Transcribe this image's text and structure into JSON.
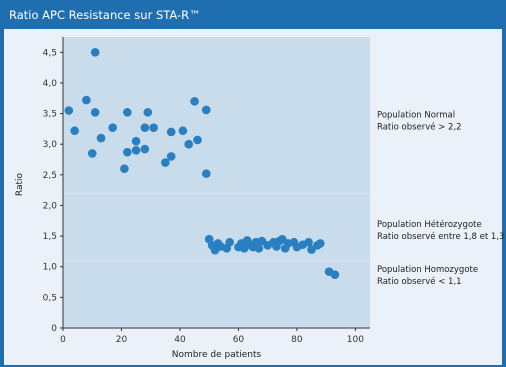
{
  "header": {
    "title": "Ratio APC Resistance sur STA-R™"
  },
  "colors": {
    "frame": "#1f6fb0",
    "plot_bg": "#c9dcec",
    "marker": "#2a7fc0",
    "panel": "#eaf1f8"
  },
  "chart_data": {
    "type": "scatter",
    "title": "Ratio APC Resistance sur STA-R™",
    "xlabel": "Nombre de patients",
    "ylabel": "Ratio",
    "xlim": [
      0,
      105
    ],
    "ylim": [
      0,
      4.75
    ],
    "x_ticks": [
      0,
      20,
      40,
      60,
      80,
      100
    ],
    "x_tick_labels": [
      "0",
      "20",
      "40",
      "60",
      "80",
      "100"
    ],
    "y_ticks": [
      0,
      0.5,
      1.0,
      1.5,
      2.0,
      2.5,
      3.0,
      3.5,
      4.0,
      4.5
    ],
    "y_tick_labels": [
      "0",
      "0,5",
      "1,0",
      "1,5",
      "2,0",
      "2,5",
      "3,0",
      "3,5",
      "4,0",
      "4,5"
    ],
    "grid": false,
    "points": [
      [
        2,
        3.55
      ],
      [
        4,
        3.22
      ],
      [
        8,
        3.72
      ],
      [
        10,
        2.85
      ],
      [
        11,
        4.5
      ],
      [
        11,
        3.52
      ],
      [
        13,
        3.1
      ],
      [
        17,
        3.27
      ],
      [
        21,
        2.6
      ],
      [
        22,
        3.52
      ],
      [
        22,
        2.87
      ],
      [
        25,
        2.9
      ],
      [
        25,
        3.05
      ],
      [
        28,
        2.92
      ],
      [
        28,
        3.27
      ],
      [
        29,
        3.52
      ],
      [
        31,
        3.27
      ],
      [
        35,
        2.7
      ],
      [
        37,
        2.8
      ],
      [
        37,
        3.2
      ],
      [
        41,
        3.22
      ],
      [
        43,
        3.0
      ],
      [
        45,
        3.7
      ],
      [
        46,
        3.07
      ],
      [
        49,
        3.56
      ],
      [
        49,
        2.52
      ],
      [
        50,
        1.45
      ],
      [
        51,
        1.35
      ],
      [
        52,
        1.27
      ],
      [
        53,
        1.38
      ],
      [
        54,
        1.33
      ],
      [
        56,
        1.3
      ],
      [
        57,
        1.4
      ],
      [
        60,
        1.32
      ],
      [
        61,
        1.38
      ],
      [
        62,
        1.3
      ],
      [
        63,
        1.43
      ],
      [
        64,
        1.36
      ],
      [
        65,
        1.32
      ],
      [
        66,
        1.4
      ],
      [
        67,
        1.3
      ],
      [
        68,
        1.42
      ],
      [
        70,
        1.35
      ],
      [
        72,
        1.4
      ],
      [
        73,
        1.33
      ],
      [
        74,
        1.42
      ],
      [
        75,
        1.45
      ],
      [
        76,
        1.3
      ],
      [
        77,
        1.38
      ],
      [
        79,
        1.4
      ],
      [
        80,
        1.32
      ],
      [
        82,
        1.36
      ],
      [
        84,
        1.4
      ],
      [
        85,
        1.28
      ],
      [
        87,
        1.35
      ],
      [
        88,
        1.38
      ],
      [
        91,
        0.92
      ],
      [
        93,
        0.87
      ]
    ],
    "annotations": [
      {
        "id": "normal",
        "line1": "Population Normal",
        "line2": "Ratio observé > 2,2",
        "y": 3.4
      },
      {
        "id": "hetero",
        "line1": "Population Hétérozygote",
        "line2": "Ratio observé entre 1,8 et 1,3",
        "y": 1.62
      },
      {
        "id": "homo",
        "line1": "Population Homozygote",
        "line2": "Ratio observé < 1,1",
        "y": 0.88
      }
    ]
  }
}
